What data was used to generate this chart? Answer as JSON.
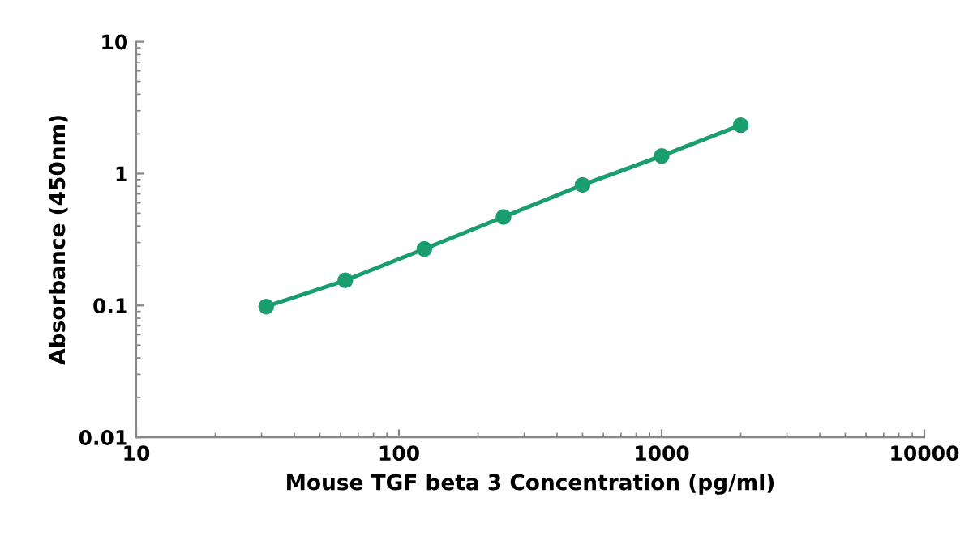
{
  "chart_data": {
    "type": "line",
    "xlabel": "Mouse TGF beta 3 Concentration (pg/ml)",
    "ylabel": "Absorbance (450nm)",
    "x": [
      31.25,
      62.5,
      125,
      250,
      500,
      1000,
      2000
    ],
    "series": [
      {
        "color": "#1a9e6e",
        "values": [
          0.098,
          0.155,
          0.268,
          0.469,
          0.82,
          1.36,
          2.33
        ]
      }
    ],
    "log": "xy",
    "xlim": [
      10,
      10000
    ],
    "ylim": [
      0.01,
      10
    ],
    "xticks": [
      10,
      100,
      1000,
      10000
    ],
    "yticks": [
      0.01,
      0.1,
      1,
      10
    ],
    "marker": "circle",
    "line_style": "solid",
    "grid": false,
    "legend": false
  }
}
